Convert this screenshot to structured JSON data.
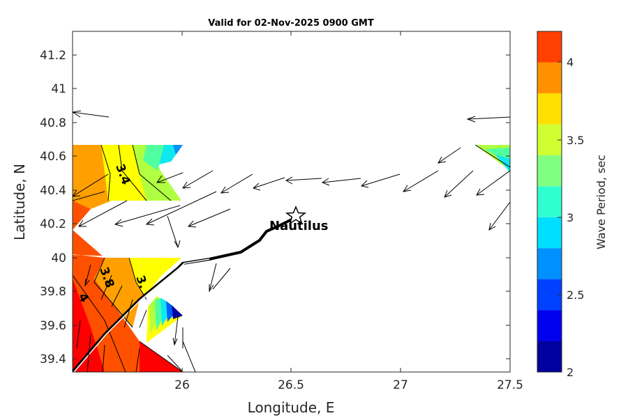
{
  "title": "Valid for 02-Nov-2025 0900 GMT",
  "map": {
    "xlabel": "Longitude, E",
    "ylabel": "Latitude, N",
    "xlim": [
      25.5,
      27.5
    ],
    "ylim": [
      39.33,
      41.35
    ],
    "xticks": [
      26,
      26.5,
      27,
      27.5
    ],
    "xtick_labels": [
      "26",
      "26.5",
      "27",
      "27.5"
    ],
    "yticks": [
      39.4,
      39.6,
      39.8,
      40,
      40.2,
      40.4,
      40.6,
      40.8,
      41,
      41.2
    ],
    "ytick_labels": [
      "39.4",
      "39.6",
      "39.8",
      "40",
      "40.2",
      "40.4",
      "40.6",
      "40.8",
      "41",
      "41.2"
    ]
  },
  "colorbar": {
    "label": "Wave Period, sec",
    "range": [
      2,
      4.2
    ],
    "ticks": [
      2,
      2.5,
      3,
      3.5,
      4
    ],
    "tick_labels": [
      "2",
      "2.5",
      "3",
      "3.5",
      "4"
    ],
    "bands": [
      {
        "from": 2.0,
        "to": 2.2,
        "color": "#00009f"
      },
      {
        "from": 2.2,
        "to": 2.4,
        "color": "#0000ef"
      },
      {
        "from": 2.4,
        "to": 2.6,
        "color": "#0040ff"
      },
      {
        "from": 2.6,
        "to": 2.8,
        "color": "#0090ff"
      },
      {
        "from": 2.8,
        "to": 3.0,
        "color": "#00dfff"
      },
      {
        "from": 3.0,
        "to": 3.2,
        "color": "#30ffcf"
      },
      {
        "from": 3.2,
        "to": 3.4,
        "color": "#80ff80"
      },
      {
        "from": 3.4,
        "to": 3.6,
        "color": "#cfff30"
      },
      {
        "from": 3.6,
        "to": 3.8,
        "color": "#ffdf00"
      },
      {
        "from": 3.8,
        "to": 4.0,
        "color": "#ff9000"
      },
      {
        "from": 4.0,
        "to": 4.2,
        "color": "#ff4000"
      }
    ]
  },
  "contour_labels": [
    "3.4",
    "3.8",
    "4",
    "3."
  ],
  "site": {
    "name": "Nautilus",
    "lon": 26.52,
    "lat": 40.26
  },
  "colors": {
    "red": "#ff0000",
    "orange_red": "#ff5000",
    "orange": "#ffa000",
    "yellow": "#ffff00",
    "light_green": "#b0ff40",
    "green": "#50ffa0",
    "cyan": "#10e8f0",
    "blue": "#0060ff",
    "dark_blue": "#0000a0",
    "coast": "#000000"
  }
}
